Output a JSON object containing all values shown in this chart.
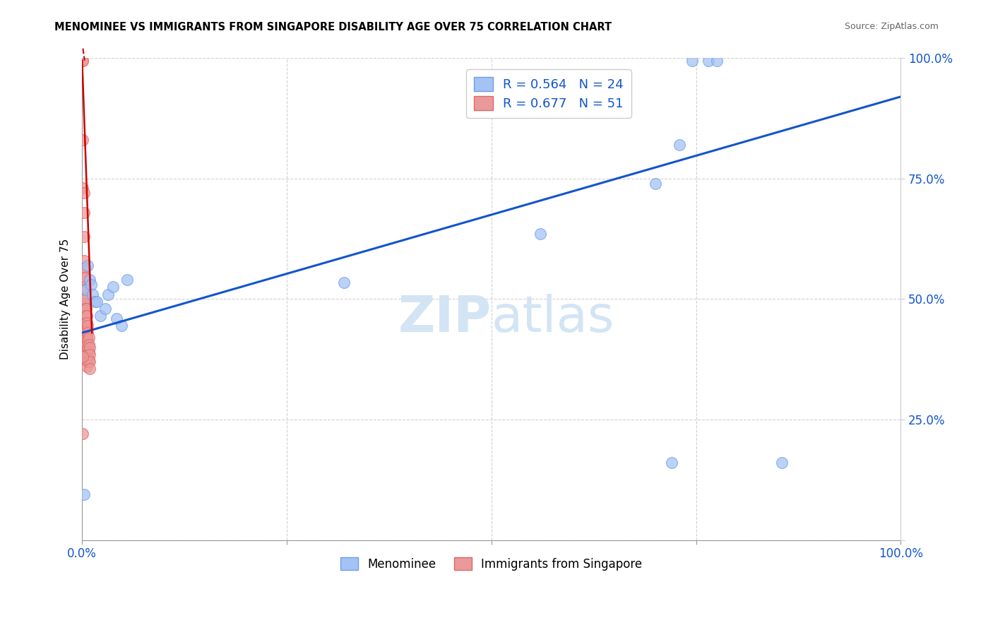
{
  "title": "MENOMINEE VS IMMIGRANTS FROM SINGAPORE DISABILITY AGE OVER 75 CORRELATION CHART",
  "source": "Source: ZipAtlas.com",
  "ylabel": "Disability Age Over 75",
  "xlim": [
    0.0,
    1.0
  ],
  "ylim": [
    0.0,
    1.0
  ],
  "xticks": [
    0.0,
    0.25,
    0.5,
    0.75,
    1.0
  ],
  "yticks": [
    0.0,
    0.25,
    0.5,
    0.75,
    1.0
  ],
  "menominee_R": 0.564,
  "menominee_N": 24,
  "singapore_R": 0.677,
  "singapore_N": 51,
  "blue_color": "#a4c2f4",
  "blue_edge_color": "#6d9eeb",
  "pink_color": "#ea9999",
  "pink_edge_color": "#e06666",
  "blue_line_color": "#1155cc",
  "pink_line_color": "#cc0000",
  "legend_color": "#1155cc",
  "watermark_color": "#cfe2f3",
  "menominee_x": [
    0.002,
    0.005,
    0.007,
    0.009,
    0.011,
    0.013,
    0.015,
    0.018,
    0.022,
    0.028,
    0.032,
    0.038,
    0.042,
    0.048,
    0.055,
    0.32,
    0.56,
    0.7,
    0.72,
    0.73,
    0.745,
    0.765,
    0.775,
    0.855
  ],
  "menominee_y": [
    0.095,
    0.52,
    0.57,
    0.54,
    0.53,
    0.51,
    0.495,
    0.495,
    0.465,
    0.48,
    0.51,
    0.525,
    0.46,
    0.445,
    0.54,
    0.535,
    0.635,
    0.74,
    0.16,
    0.82,
    0.995,
    0.995,
    0.995,
    0.16
  ],
  "singapore_x": [
    0.001,
    0.001,
    0.001,
    0.001,
    0.001,
    0.002,
    0.002,
    0.002,
    0.002,
    0.002,
    0.002,
    0.003,
    0.003,
    0.003,
    0.003,
    0.003,
    0.003,
    0.004,
    0.004,
    0.004,
    0.004,
    0.004,
    0.004,
    0.005,
    0.005,
    0.005,
    0.005,
    0.005,
    0.006,
    0.006,
    0.006,
    0.006,
    0.006,
    0.006,
    0.006,
    0.006,
    0.007,
    0.007,
    0.007,
    0.007,
    0.007,
    0.007,
    0.008,
    0.008,
    0.008,
    0.008,
    0.009,
    0.009,
    0.009,
    0.009,
    0.001
  ],
  "singapore_y": [
    0.995,
    0.995,
    0.83,
    0.73,
    0.22,
    0.72,
    0.68,
    0.63,
    0.58,
    0.55,
    0.52,
    0.565,
    0.545,
    0.525,
    0.505,
    0.49,
    0.475,
    0.52,
    0.5,
    0.48,
    0.465,
    0.445,
    0.43,
    0.48,
    0.465,
    0.45,
    0.435,
    0.42,
    0.465,
    0.45,
    0.435,
    0.42,
    0.405,
    0.39,
    0.375,
    0.36,
    0.445,
    0.43,
    0.415,
    0.4,
    0.385,
    0.37,
    0.42,
    0.405,
    0.39,
    0.375,
    0.4,
    0.385,
    0.37,
    0.355,
    0.38
  ],
  "blue_trendline_x": [
    0.0,
    1.0
  ],
  "blue_trendline_y": [
    0.43,
    0.92
  ],
  "pink_trendline_x": [
    0.0,
    0.012
  ],
  "pink_trendline_y": [
    0.995,
    0.43
  ]
}
